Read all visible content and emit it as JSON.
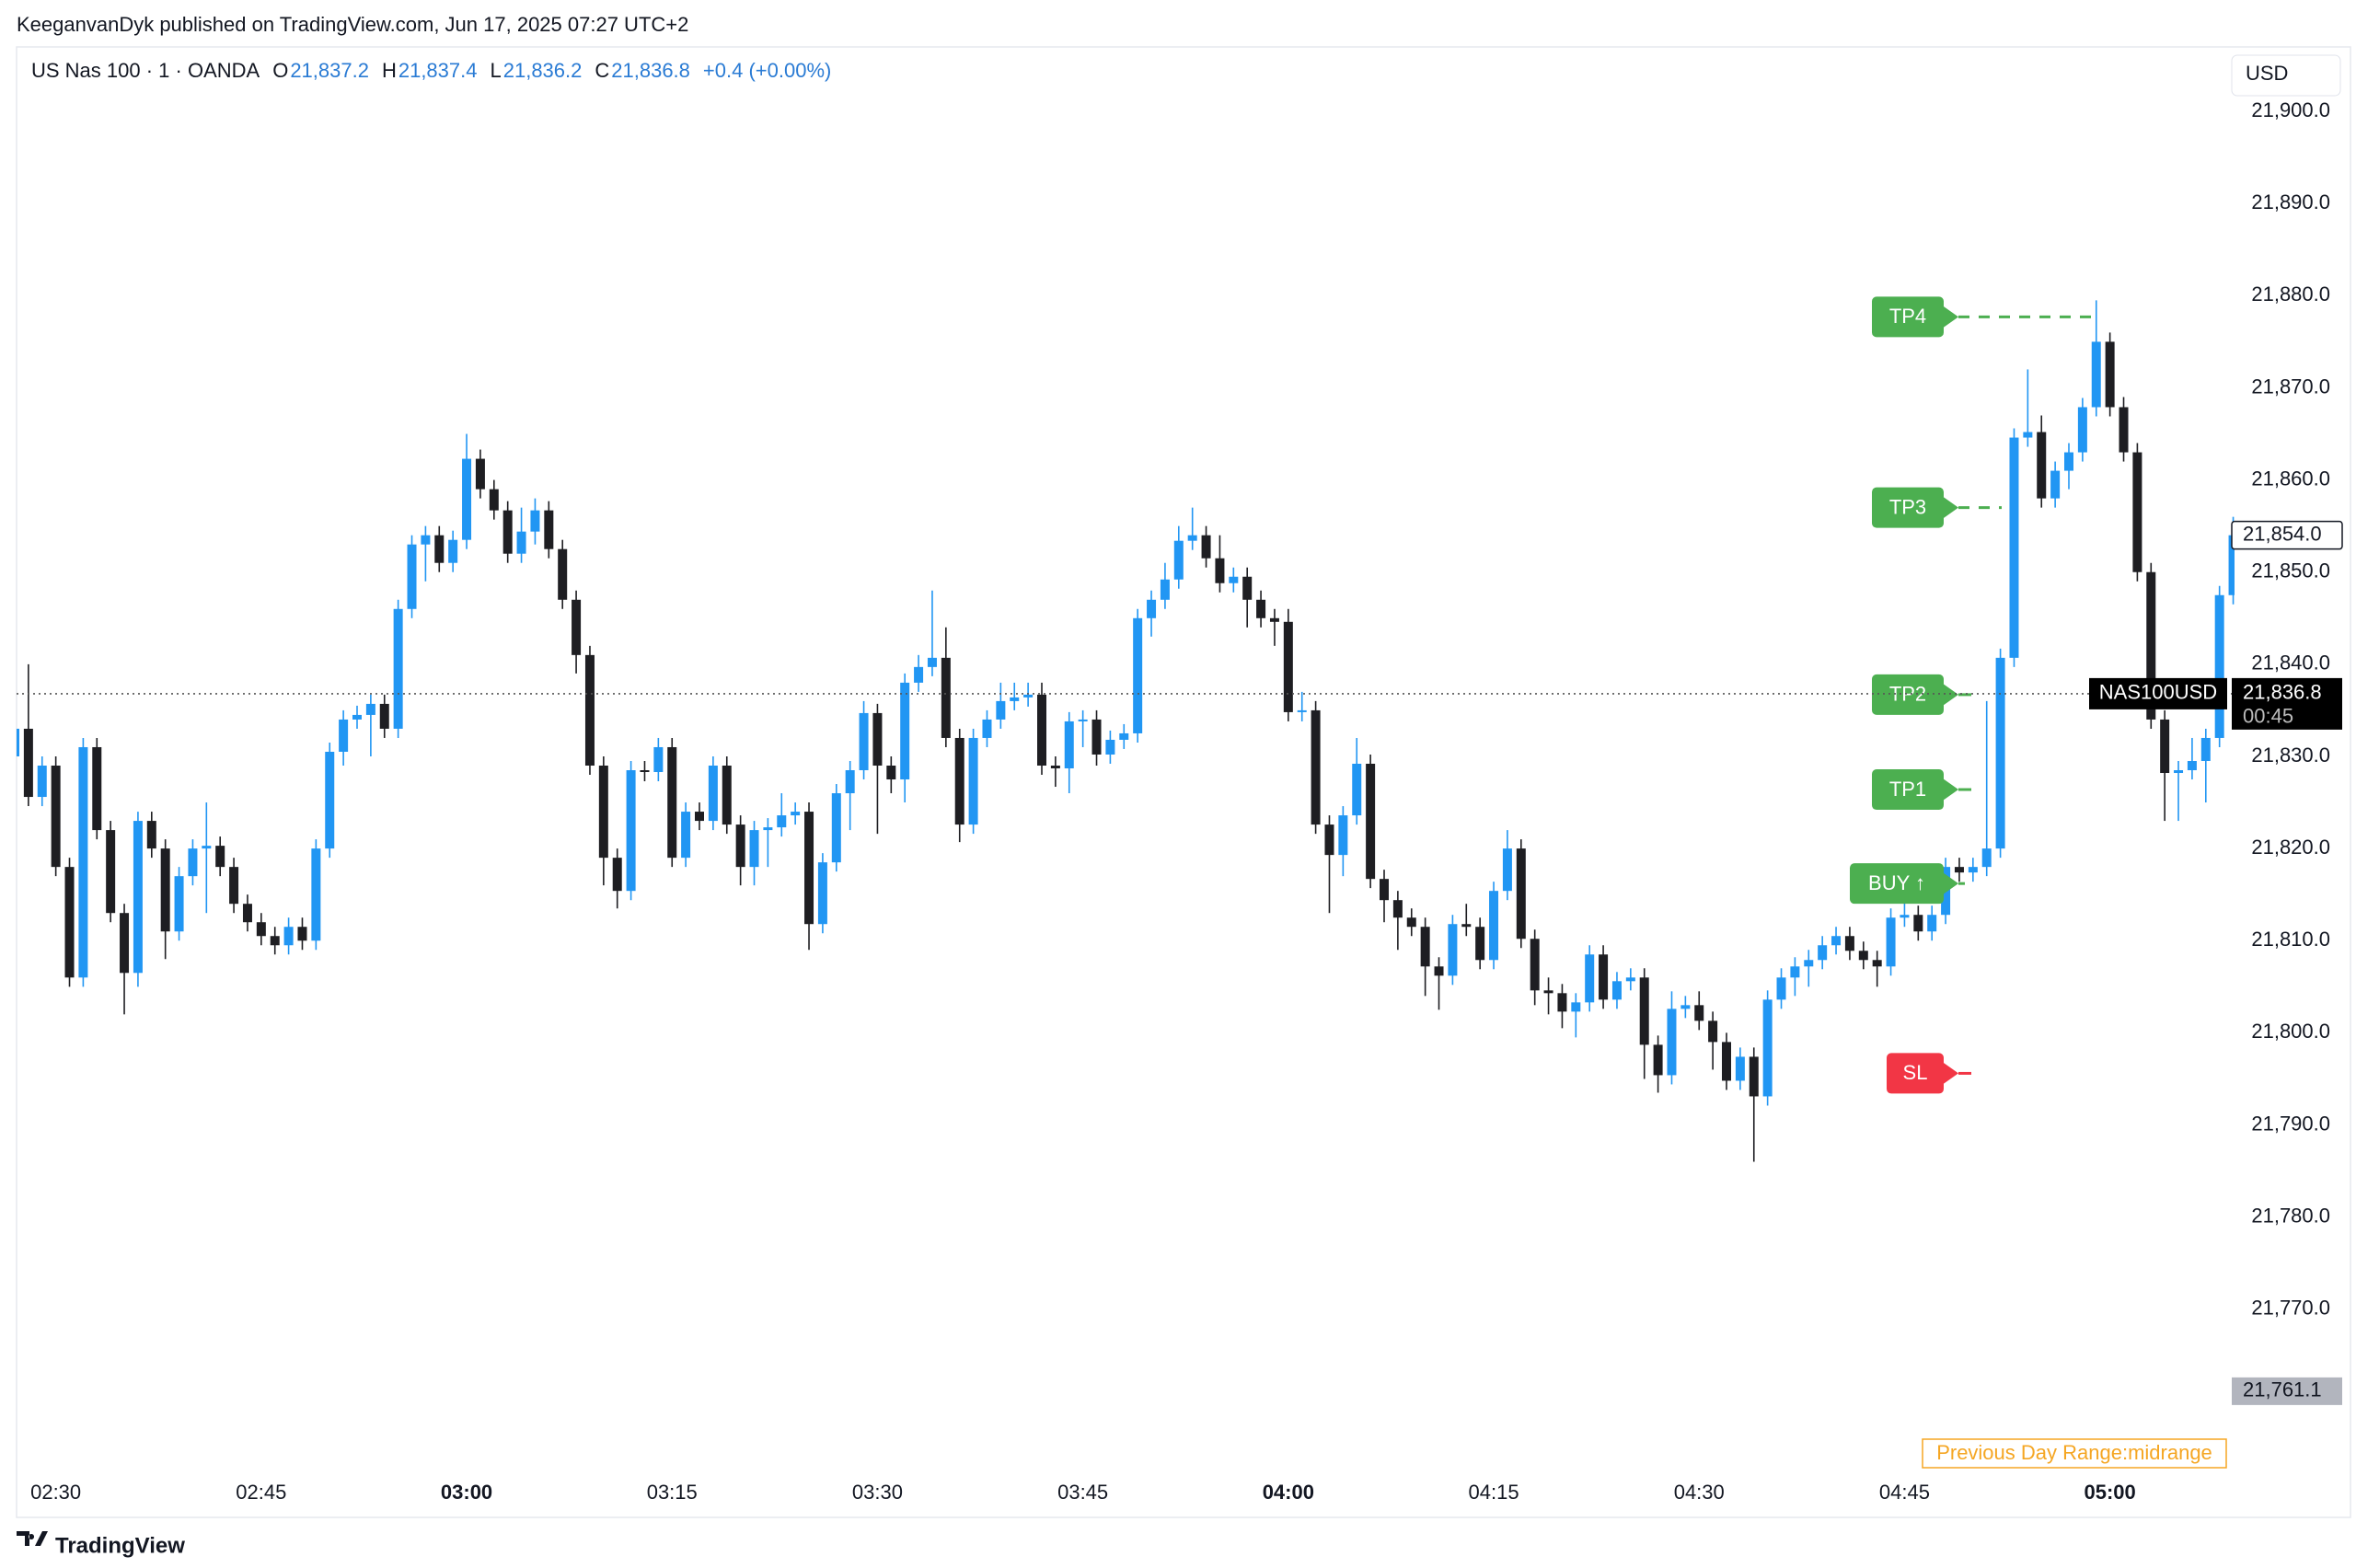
{
  "header": {
    "published": "KeeganvanDyk published on TradingView.com, Jun 17, 2025 07:27 UTC+2",
    "symbol": "US Nas 100 · 1 · OANDA",
    "ohlc": [
      {
        "key": "O",
        "value": "21,837.2"
      },
      {
        "key": "H",
        "value": "21,837.4"
      },
      {
        "key": "L",
        "value": "21,836.2"
      },
      {
        "key": "C",
        "value": "21,836.8"
      }
    ],
    "change": "+0.4 (+0.00%)"
  },
  "footer": {
    "brand": "TradingView"
  },
  "chart_data": {
    "type": "candlestick",
    "currency": "USD",
    "up_color": "#2196f3",
    "down_color": "#1e1e22",
    "categories": [
      null,
      null,
      null,
      "02:30",
      null,
      null,
      null,
      null,
      null,
      null,
      null,
      null,
      null,
      null,
      null,
      null,
      null,
      null,
      "02:45",
      null,
      null,
      null,
      null,
      null,
      null,
      null,
      null,
      null,
      null,
      null,
      null,
      null,
      null,
      "03:00",
      null,
      null,
      null,
      null,
      null,
      null,
      null,
      null,
      null,
      null,
      null,
      null,
      null,
      null,
      "03:15",
      null,
      null,
      null,
      null,
      null,
      null,
      null,
      null,
      null,
      null,
      null,
      null,
      null,
      null,
      "03:30",
      null,
      null,
      null,
      null,
      null,
      null,
      null,
      null,
      null,
      null,
      null,
      null,
      null,
      null,
      "03:45",
      null,
      null,
      null,
      null,
      null,
      null,
      null,
      null,
      null,
      null,
      null,
      null,
      null,
      null,
      "04:00",
      null,
      null,
      null,
      null,
      null,
      null,
      null,
      null,
      null,
      null,
      null,
      null,
      null,
      null,
      "04:15",
      null,
      null,
      null,
      null,
      null,
      null,
      null,
      null,
      null,
      null,
      null,
      null,
      null,
      null,
      "04:30",
      null,
      null,
      null,
      null,
      null,
      null,
      null,
      null,
      null,
      null,
      null,
      null,
      null,
      null,
      "04:45",
      null,
      null,
      null,
      null,
      null,
      null,
      null,
      null,
      null,
      null,
      null,
      null,
      null,
      null,
      "05:00",
      null,
      null,
      null,
      null,
      null,
      null,
      null,
      null,
      null
    ],
    "open": [
      21830,
      21833,
      21825.6,
      21829,
      21818,
      21806,
      21831,
      21822,
      21813,
      21806.5,
      21823,
      21820,
      21811,
      21817,
      21820,
      21820.3,
      21818,
      21814,
      21812,
      21810.5,
      21809.5,
      21811.5,
      21810,
      21820,
      21830.5,
      21834,
      21834.5,
      21835.7,
      21833,
      21846,
      21853,
      21854,
      21851,
      21853.5,
      21862.3,
      21859,
      21856.7,
      21852,
      21854.4,
      21856.7,
      21852.5,
      21847,
      21841,
      21829,
      21819,
      21815.4,
      21828.5,
      21828.3,
      21831,
      21819,
      21824,
      21823,
      21829,
      21822.6,
      21818,
      21822,
      21822.3,
      21823.6,
      21824,
      21811.8,
      21818.5,
      21826,
      21828.5,
      21834.7,
      21829,
      21827.5,
      21838,
      21839.7,
      21840.7,
      21832,
      21822.6,
      21832,
      21834,
      21836,
      21836.4,
      21836.7,
      21829,
      21828.7,
      21833.8,
      21834,
      21830.2,
      21831.8,
      21832.5,
      21845,
      21847,
      21849.2,
      21853.4,
      21854,
      21851.5,
      21848.8,
      21849.5,
      21847,
      21845,
      21844.6,
      21834.8,
      21835,
      21822.6,
      21819.3,
      21823.6,
      21829.2,
      21816.7,
      21814.4,
      21812.5,
      21811.5,
      21807.2,
      21806.2,
      21811.8,
      21811.5,
      21807.9,
      21815.4,
      21820,
      21810.2,
      21804.6,
      21804.3,
      21802.3,
      21803.3,
      21808.5,
      21803.6,
      21805.6,
      21806,
      21798.7,
      21795.4,
      21802.6,
      21803,
      21801.3,
      21799,
      21794.8,
      21797.4,
      21793.1,
      21803.6,
      21806,
      21807.2,
      21807.9,
      21809.5,
      21810.5,
      21808.9,
      21807.9,
      21807.2,
      21812.5,
      21812.8,
      21811,
      21812.8,
      21818,
      21817.4,
      21818,
      21820,
      21840.7,
      21864.6,
      21865.2,
      21858,
      21861,
      21863,
      21867.9,
      21875,
      21867.9,
      21863,
      21850,
      21834,
      21828.2,
      21828.5,
      21829.5,
      21832,
      21847.5
    ],
    "high": [
      21834,
      21840,
      21830,
      21830,
      21819,
      21832,
      21832,
      21823,
      21814,
      21824,
      21824,
      21821,
      21818,
      21821,
      21825,
      21821.3,
      21819,
      21815,
      21813,
      21811.5,
      21812.5,
      21812.5,
      21821,
      21831.5,
      21835,
      21835.5,
      21836.7,
      21836.7,
      21847,
      21854,
      21855,
      21855,
      21854.5,
      21865,
      21863.3,
      21860,
      21857.7,
      21857,
      21858,
      21857.7,
      21853.5,
      21848,
      21842,
      21830,
      21820,
      21829.5,
      21829.5,
      21832,
      21832,
      21825,
      21825,
      21830,
      21830,
      21823.6,
      21823,
      21823.3,
      21826,
      21825,
      21825,
      21819.5,
      21827,
      21829.5,
      21836,
      21835.7,
      21830,
      21839,
      21841,
      21848,
      21844,
      21833,
      21833,
      21835,
      21838,
      21838,
      21838,
      21838,
      21830,
      21834.8,
      21835,
      21835,
      21832.8,
      21833.5,
      21846,
      21848,
      21851,
      21855,
      21857,
      21855,
      21854,
      21850.5,
      21850.5,
      21848,
      21846,
      21846,
      21837,
      21836,
      21823.6,
      21824.6,
      21832,
      21830.2,
      21817.7,
      21815.4,
      21813.5,
      21812.5,
      21808.2,
      21812.8,
      21814,
      21812.5,
      21816.4,
      21822,
      21821,
      21811.2,
      21806,
      21805.3,
      21804.3,
      21809.5,
      21809.5,
      21806.6,
      21807,
      21807,
      21799.7,
      21804.5,
      21804,
      21804.5,
      21802.3,
      21800,
      21798.4,
      21798.4,
      21804.6,
      21807,
      21808.2,
      21809,
      21810.5,
      21811.5,
      21811.5,
      21809.9,
      21808.9,
      21813.5,
      21817,
      21813.8,
      21813.8,
      21819,
      21819,
      21819,
      21836,
      21841.7,
      21865.6,
      21872,
      21867,
      21862,
      21864,
      21868.9,
      21879.5,
      21876,
      21869,
      21864,
      21851,
      21835,
      21829.5,
      21832,
      21833,
      21848.5,
      21856
    ],
    "low": [
      21829,
      21824.6,
      21824.6,
      21817,
      21805,
      21805,
      21821,
      21812,
      21802,
      21805,
      21819,
      21808,
      21810,
      21816,
      21813,
      21817,
      21813,
      21811,
      21809.5,
      21808.5,
      21808.5,
      21809,
      21809,
      21819,
      21829,
      21833,
      21830,
      21832,
      21832,
      21845,
      21849,
      21850,
      21850,
      21852.5,
      21858,
      21855.7,
      21851,
      21851,
      21853,
      21851.5,
      21846,
      21839,
      21828,
      21816,
      21813.5,
      21814.4,
      21827.3,
      21827.3,
      21818,
      21818,
      21822,
      21822,
      21821.6,
      21816,
      21816,
      21818,
      21821.3,
      21822.6,
      21809,
      21810.8,
      21817.5,
      21822,
      21827.5,
      21821.6,
      21826,
      21825,
      21837,
      21838.7,
      21831,
      21820.7,
      21821.6,
      21831,
      21833,
      21835,
      21835.4,
      21828,
      21826.7,
      21826,
      21831,
      21829,
      21829.2,
      21830.8,
      21831.5,
      21843,
      21846,
      21848.2,
      21852.4,
      21850.5,
      21847.8,
      21847.8,
      21844,
      21844,
      21842,
      21833.8,
      21833.8,
      21821.6,
      21813,
      21817,
      21822.6,
      21815.7,
      21812,
      21809,
      21810.5,
      21804,
      21802.5,
      21805.2,
      21810.5,
      21806.9,
      21806.9,
      21814.4,
      21809.2,
      21803,
      21802,
      21800.5,
      21799.5,
      21802.3,
      21802.6,
      21802.6,
      21804.6,
      21795,
      21793.5,
      21794.4,
      21801.6,
      21800.3,
      21796,
      21793.8,
      21793.8,
      21786,
      21792.1,
      21802.6,
      21804,
      21805,
      21806.9,
      21808.5,
      21807.9,
      21806.9,
      21805,
      21806.2,
      21811.5,
      21810,
      21810,
      21811.8,
      21816.4,
      21816.4,
      21817,
      21819,
      21839.7,
      21863.6,
      21857,
      21857,
      21859,
      21862,
      21866.9,
      21866.9,
      21862,
      21849,
      21833,
      21823,
      21823,
      21827.5,
      21825,
      21831,
      21846.5
    ],
    "close": [
      21833,
      21825.6,
      21829,
      21818,
      21806,
      21831,
      21822,
      21813,
      21806.5,
      21823,
      21820,
      21811,
      21817,
      21820,
      21820.3,
      21818,
      21814,
      21812,
      21810.5,
      21809.5,
      21811.5,
      21810,
      21820,
      21830.5,
      21834,
      21834.5,
      21835.7,
      21833,
      21846,
      21853,
      21854,
      21851,
      21853.5,
      21862.3,
      21859,
      21856.7,
      21852,
      21854.4,
      21856.7,
      21852.5,
      21847,
      21841,
      21829,
      21819,
      21815.4,
      21828.5,
      21828.3,
      21831,
      21819,
      21824,
      21823,
      21829,
      21822.6,
      21818,
      21822,
      21822.3,
      21823.6,
      21824,
      21811.8,
      21818.5,
      21826,
      21828.5,
      21834.7,
      21829,
      21827.5,
      21838,
      21839.7,
      21840.7,
      21832,
      21822.6,
      21832,
      21834,
      21836,
      21836.4,
      21836.7,
      21829,
      21828.7,
      21833.8,
      21834,
      21830.2,
      21831.8,
      21832.5,
      21845,
      21847,
      21849.2,
      21853.4,
      21854,
      21851.5,
      21848.8,
      21849.5,
      21847,
      21845,
      21844.6,
      21834.8,
      21835,
      21822.6,
      21819.3,
      21823.6,
      21829.2,
      21816.7,
      21814.4,
      21812.5,
      21811.5,
      21807.2,
      21806.2,
      21811.8,
      21811.5,
      21807.9,
      21815.4,
      21820,
      21810.2,
      21804.6,
      21804.3,
      21802.3,
      21803.3,
      21808.5,
      21803.6,
      21805.6,
      21806,
      21798.7,
      21795.4,
      21802.6,
      21803,
      21801.3,
      21799,
      21794.8,
      21797.4,
      21793.1,
      21803.6,
      21806,
      21807.2,
      21807.9,
      21809.5,
      21810.5,
      21808.9,
      21807.9,
      21807.2,
      21812.5,
      21812.8,
      21811,
      21812.8,
      21818,
      21817.4,
      21818,
      21820,
      21840.7,
      21864.6,
      21865.2,
      21858,
      21861,
      21863,
      21867.9,
      21875,
      21867.9,
      21863,
      21850,
      21834,
      21828.2,
      21828.5,
      21829.5,
      21832,
      21847.5,
      21854
    ],
    "ylim": [
      21752.3,
      21905.9
    ],
    "yticks": [
      {
        "value": 21770,
        "label": "21,770.0"
      },
      {
        "value": 21780,
        "label": "21,780.0"
      },
      {
        "value": 21790,
        "label": "21,790.0"
      },
      {
        "value": 21800,
        "label": "21,800.0"
      },
      {
        "value": 21810,
        "label": "21,810.0"
      },
      {
        "value": 21820,
        "label": "21,820.0"
      },
      {
        "value": 21830,
        "label": "21,830.0"
      },
      {
        "value": 21840,
        "label": "21,840.0"
      },
      {
        "value": 21850,
        "label": "21,850.0"
      },
      {
        "value": 21860,
        "label": "21,860.0"
      },
      {
        "value": 21870,
        "label": "21,870.0"
      },
      {
        "value": 21880,
        "label": "21,880.0"
      },
      {
        "value": 21890,
        "label": "21,890.0"
      },
      {
        "value": 21900,
        "label": "21,900.0"
      }
    ],
    "grid": false,
    "price_labels": [
      {
        "value": 21854,
        "label": "21,854.0",
        "style": "outline"
      },
      {
        "value": 21836.8,
        "label": "21,836.8",
        "style": "current",
        "countdown": "00:45",
        "symbol": "NAS100USD"
      },
      {
        "value": 21761.1,
        "label": "21,761.1",
        "style": "grey"
      }
    ],
    "trade_levels": [
      {
        "label": "TP4",
        "value": 21877.7,
        "color": "#4caf50"
      },
      {
        "label": "TP3",
        "value": 21857,
        "color": "#4caf50"
      },
      {
        "label": "TP2",
        "value": 21836.7,
        "color": "#4caf50"
      },
      {
        "label": "TP1",
        "value": 21826.4,
        "color": "#4caf50"
      },
      {
        "label": "BUY ↑",
        "value": 21816.2,
        "color": "#4caf50"
      },
      {
        "label": "SL",
        "value": 21795.6,
        "color": "#f23645"
      }
    ],
    "indicator_label": "Previous Day Range:midrange"
  }
}
